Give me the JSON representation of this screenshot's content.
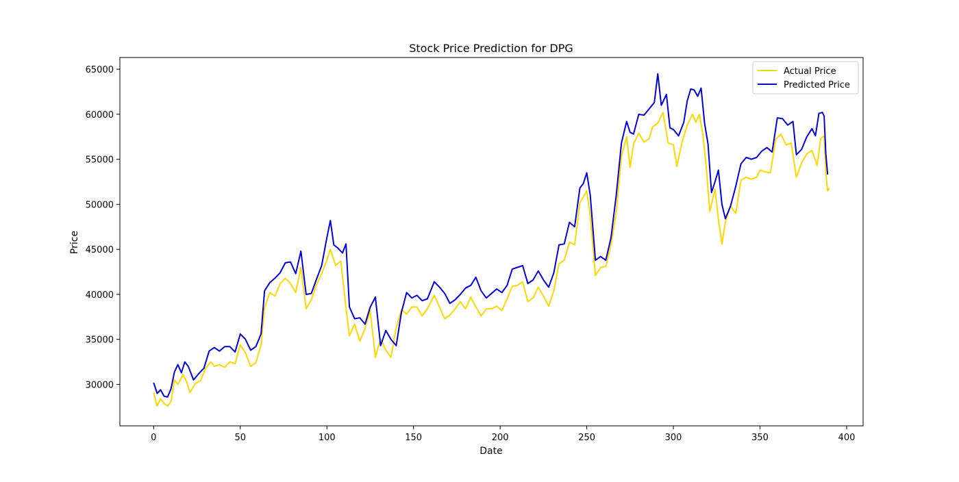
{
  "chart_data": {
    "type": "line",
    "title": "Stock Price Prediction for DPG",
    "xlabel": "Date",
    "ylabel": "Price",
    "xlim": [
      -19.5,
      409.5
    ],
    "ylim": [
      25400,
      66300
    ],
    "xticks": [
      0,
      50,
      100,
      150,
      200,
      250,
      300,
      350,
      400
    ],
    "yticks": [
      30000,
      35000,
      40000,
      45000,
      50000,
      55000,
      60000,
      65000
    ],
    "xtick_labels": [
      "0",
      "50",
      "100",
      "150",
      "200",
      "250",
      "300",
      "350",
      "400"
    ],
    "ytick_labels": [
      "30000",
      "35000",
      "40000",
      "45000",
      "50000",
      "55000",
      "60000",
      "65000"
    ],
    "grid": false,
    "legend_position": "top-right",
    "series": [
      {
        "name": "Actual Price",
        "color": "#FFD700",
        "points": [
          [
            0,
            29100
          ],
          [
            2,
            27600
          ],
          [
            4,
            28400
          ],
          [
            6,
            27900
          ],
          [
            8,
            27600
          ],
          [
            10,
            28100
          ],
          [
            12,
            30500
          ],
          [
            14,
            30000
          ],
          [
            17,
            31100
          ],
          [
            19,
            30300
          ],
          [
            21,
            29100
          ],
          [
            24,
            30100
          ],
          [
            27,
            30400
          ],
          [
            30,
            31800
          ],
          [
            33,
            32500
          ],
          [
            35,
            32000
          ],
          [
            38,
            32200
          ],
          [
            41,
            31900
          ],
          [
            44,
            32500
          ],
          [
            47,
            32300
          ],
          [
            50,
            34400
          ],
          [
            53,
            33500
          ],
          [
            56,
            32000
          ],
          [
            59,
            32400
          ],
          [
            62,
            34400
          ],
          [
            64,
            38500
          ],
          [
            67,
            40200
          ],
          [
            70,
            39800
          ],
          [
            73,
            41200
          ],
          [
            76,
            41800
          ],
          [
            79,
            41200
          ],
          [
            82,
            40200
          ],
          [
            85,
            43000
          ],
          [
            88,
            38400
          ],
          [
            91,
            39400
          ],
          [
            94,
            41100
          ],
          [
            97,
            42300
          ],
          [
            100,
            43800
          ],
          [
            102,
            45000
          ],
          [
            105,
            43200
          ],
          [
            108,
            43700
          ],
          [
            111,
            38500
          ],
          [
            113,
            35400
          ],
          [
            116,
            36700
          ],
          [
            119,
            34800
          ],
          [
            122,
            36200
          ],
          [
            125,
            38200
          ],
          [
            128,
            33000
          ],
          [
            131,
            35100
          ],
          [
            134,
            33800
          ],
          [
            137,
            33000
          ],
          [
            140,
            36300
          ],
          [
            143,
            38300
          ],
          [
            146,
            37800
          ],
          [
            149,
            38600
          ],
          [
            152,
            38600
          ],
          [
            155,
            37600
          ],
          [
            158,
            38400
          ],
          [
            162,
            39900
          ],
          [
            165,
            38600
          ],
          [
            168,
            37300
          ],
          [
            171,
            37700
          ],
          [
            174,
            38400
          ],
          [
            177,
            39200
          ],
          [
            180,
            38400
          ],
          [
            183,
            39700
          ],
          [
            186,
            38600
          ],
          [
            189,
            37600
          ],
          [
            192,
            38400
          ],
          [
            195,
            38400
          ],
          [
            198,
            38700
          ],
          [
            201,
            38200
          ],
          [
            204,
            39500
          ],
          [
            207,
            40900
          ],
          [
            210,
            41000
          ],
          [
            213,
            41400
          ],
          [
            216,
            39200
          ],
          [
            219,
            39600
          ],
          [
            222,
            40800
          ],
          [
            225,
            39800
          ],
          [
            228,
            38700
          ],
          [
            231,
            40400
          ],
          [
            234,
            43400
          ],
          [
            237,
            43800
          ],
          [
            240,
            45800
          ],
          [
            243,
            45500
          ],
          [
            246,
            50200
          ],
          [
            248,
            50800
          ],
          [
            250,
            51500
          ],
          [
            252,
            48700
          ],
          [
            255,
            42100
          ],
          [
            258,
            43000
          ],
          [
            261,
            43100
          ],
          [
            264,
            45500
          ],
          [
            267,
            49100
          ],
          [
            270,
            55300
          ],
          [
            273,
            57500
          ],
          [
            275,
            54100
          ],
          [
            277,
            56700
          ],
          [
            280,
            57900
          ],
          [
            283,
            56900
          ],
          [
            286,
            57300
          ],
          [
            288,
            58600
          ],
          [
            291,
            59000
          ],
          [
            294,
            60200
          ],
          [
            297,
            56800
          ],
          [
            300,
            56600
          ],
          [
            302,
            54200
          ],
          [
            305,
            56900
          ],
          [
            308,
            58800
          ],
          [
            311,
            60000
          ],
          [
            313,
            59100
          ],
          [
            315,
            60000
          ],
          [
            317,
            57700
          ],
          [
            319,
            54100
          ],
          [
            321,
            49200
          ],
          [
            324,
            51700
          ],
          [
            326,
            48300
          ],
          [
            328,
            45600
          ],
          [
            330,
            48000
          ],
          [
            333,
            49800
          ],
          [
            336,
            49000
          ],
          [
            339,
            52700
          ],
          [
            342,
            53000
          ],
          [
            345,
            52800
          ],
          [
            348,
            53000
          ],
          [
            350,
            53800
          ],
          [
            353,
            53600
          ],
          [
            356,
            53500
          ],
          [
            359,
            57200
          ],
          [
            362,
            57800
          ],
          [
            365,
            56600
          ],
          [
            368,
            56800
          ],
          [
            371,
            53000
          ],
          [
            374,
            54600
          ],
          [
            377,
            55600
          ],
          [
            380,
            56000
          ],
          [
            383,
            54300
          ],
          [
            385,
            57300
          ],
          [
            387,
            57600
          ],
          [
            388,
            53500
          ],
          [
            389,
            51500
          ],
          [
            390,
            51800
          ]
        ]
      },
      {
        "name": "Predicted Price",
        "color": "#0000E0",
        "points": [
          [
            0,
            30200
          ],
          [
            2,
            29000
          ],
          [
            4,
            29400
          ],
          [
            6,
            28700
          ],
          [
            8,
            28600
          ],
          [
            10,
            29500
          ],
          [
            12,
            31400
          ],
          [
            14,
            32200
          ],
          [
            16,
            31300
          ],
          [
            18,
            32500
          ],
          [
            20,
            32000
          ],
          [
            23,
            30500
          ],
          [
            26,
            31200
          ],
          [
            29,
            31800
          ],
          [
            32,
            33700
          ],
          [
            35,
            34100
          ],
          [
            38,
            33700
          ],
          [
            41,
            34200
          ],
          [
            44,
            34200
          ],
          [
            47,
            33600
          ],
          [
            50,
            35600
          ],
          [
            53,
            35000
          ],
          [
            56,
            33800
          ],
          [
            59,
            34200
          ],
          [
            62,
            35600
          ],
          [
            64,
            40400
          ],
          [
            67,
            41300
          ],
          [
            70,
            41800
          ],
          [
            73,
            42400
          ],
          [
            76,
            43500
          ],
          [
            79,
            43600
          ],
          [
            82,
            42300
          ],
          [
            85,
            44800
          ],
          [
            88,
            40000
          ],
          [
            91,
            40100
          ],
          [
            94,
            41700
          ],
          [
            97,
            43200
          ],
          [
            100,
            46300
          ],
          [
            102,
            48200
          ],
          [
            104,
            45500
          ],
          [
            106,
            45200
          ],
          [
            109,
            44600
          ],
          [
            111,
            45600
          ],
          [
            113,
            38600
          ],
          [
            116,
            37300
          ],
          [
            119,
            37400
          ],
          [
            122,
            36700
          ],
          [
            125,
            38600
          ],
          [
            128,
            39700
          ],
          [
            131,
            34300
          ],
          [
            134,
            36000
          ],
          [
            137,
            35000
          ],
          [
            140,
            34300
          ],
          [
            143,
            38000
          ],
          [
            146,
            40200
          ],
          [
            149,
            39600
          ],
          [
            152,
            39900
          ],
          [
            155,
            39300
          ],
          [
            158,
            39500
          ],
          [
            162,
            41400
          ],
          [
            165,
            40800
          ],
          [
            168,
            40100
          ],
          [
            171,
            39000
          ],
          [
            174,
            39400
          ],
          [
            177,
            40000
          ],
          [
            180,
            40700
          ],
          [
            183,
            41000
          ],
          [
            186,
            41900
          ],
          [
            189,
            40400
          ],
          [
            192,
            39600
          ],
          [
            195,
            40100
          ],
          [
            198,
            40600
          ],
          [
            201,
            40200
          ],
          [
            204,
            41000
          ],
          [
            207,
            42800
          ],
          [
            210,
            43000
          ],
          [
            213,
            43200
          ],
          [
            216,
            41200
          ],
          [
            219,
            41600
          ],
          [
            222,
            42600
          ],
          [
            225,
            41600
          ],
          [
            228,
            40800
          ],
          [
            231,
            42400
          ],
          [
            234,
            45500
          ],
          [
            237,
            45600
          ],
          [
            240,
            48000
          ],
          [
            243,
            47500
          ],
          [
            246,
            51800
          ],
          [
            248,
            52300
          ],
          [
            250,
            53500
          ],
          [
            252,
            51000
          ],
          [
            255,
            43800
          ],
          [
            258,
            44200
          ],
          [
            261,
            43800
          ],
          [
            264,
            46300
          ],
          [
            267,
            51000
          ],
          [
            270,
            56800
          ],
          [
            273,
            59200
          ],
          [
            275,
            58000
          ],
          [
            277,
            57800
          ],
          [
            280,
            60000
          ],
          [
            283,
            59900
          ],
          [
            286,
            60600
          ],
          [
            289,
            61300
          ],
          [
            291,
            64500
          ],
          [
            293,
            61000
          ],
          [
            296,
            62200
          ],
          [
            298,
            58500
          ],
          [
            300,
            58300
          ],
          [
            303,
            57600
          ],
          [
            306,
            59100
          ],
          [
            308,
            61500
          ],
          [
            310,
            62800
          ],
          [
            312,
            62700
          ],
          [
            314,
            62000
          ],
          [
            316,
            62900
          ],
          [
            318,
            59000
          ],
          [
            320,
            56700
          ],
          [
            322,
            51300
          ],
          [
            324,
            52500
          ],
          [
            326,
            53800
          ],
          [
            328,
            50000
          ],
          [
            330,
            48400
          ],
          [
            333,
            49800
          ],
          [
            336,
            52000
          ],
          [
            339,
            54500
          ],
          [
            342,
            55200
          ],
          [
            345,
            55000
          ],
          [
            348,
            55200
          ],
          [
            351,
            55900
          ],
          [
            354,
            56300
          ],
          [
            357,
            55800
          ],
          [
            360,
            59600
          ],
          [
            363,
            59500
          ],
          [
            366,
            58800
          ],
          [
            369,
            59200
          ],
          [
            371,
            55500
          ],
          [
            374,
            56100
          ],
          [
            377,
            57500
          ],
          [
            380,
            58400
          ],
          [
            382,
            57600
          ],
          [
            384,
            60100
          ],
          [
            386,
            60200
          ],
          [
            387,
            59800
          ],
          [
            388,
            55600
          ],
          [
            389,
            53300
          ]
        ]
      }
    ]
  }
}
